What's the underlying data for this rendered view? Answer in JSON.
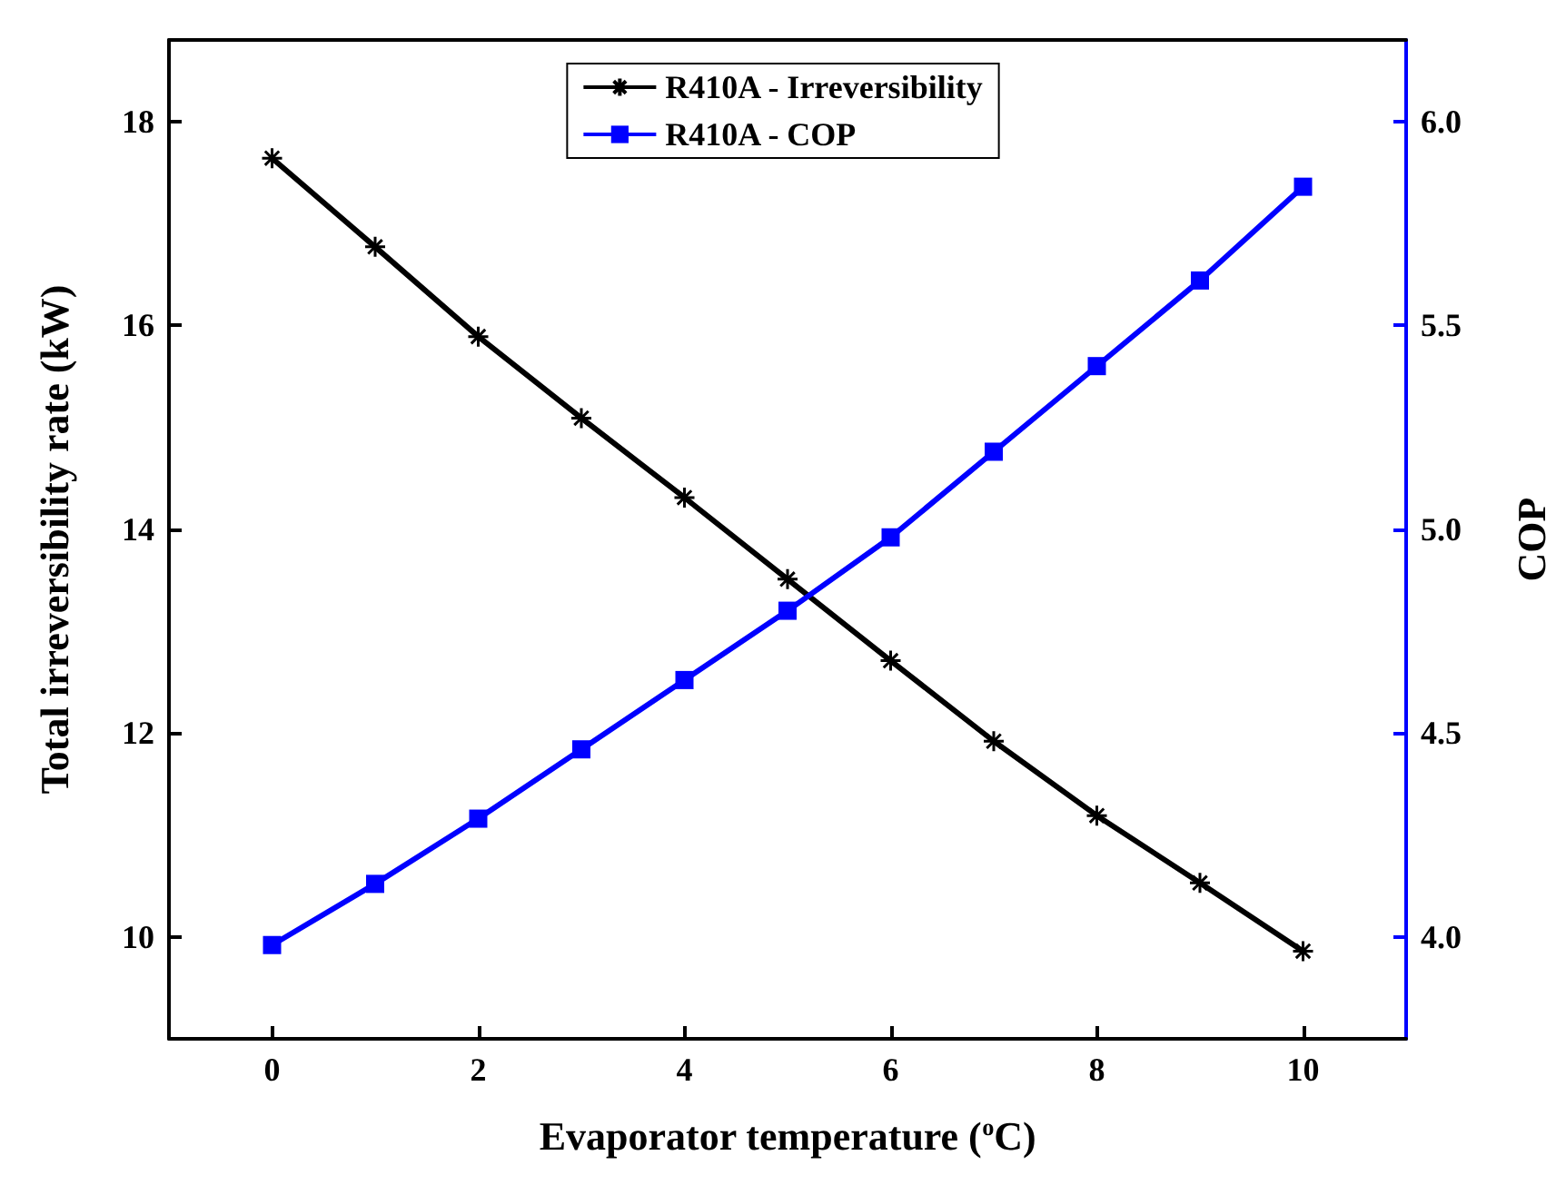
{
  "chart_data": {
    "type": "line",
    "xlabel": "Evaporator temperature ($^{o}$C)",
    "ylabel": "Total irreversibility rate (kW)",
    "y2label": "COP",
    "x": [
      0,
      1,
      2,
      3,
      4,
      5,
      6,
      7,
      8,
      9,
      10
    ],
    "series": [
      {
        "name": "R410A - Irreversibility",
        "color": "#000000",
        "marker": "cross",
        "values": [
          17.64,
          16.77,
          15.89,
          15.09,
          14.31,
          13.51,
          12.71,
          11.92,
          11.19,
          10.53,
          9.86
        ]
      },
      {
        "name": "R410A - COP",
        "color": "#0000ff",
        "marker": "square",
        "axis": "y2",
        "values": [
          3.98,
          4.13,
          4.29,
          4.46,
          4.63,
          4.8,
          4.98,
          5.19,
          5.4,
          5.61,
          5.84
        ]
      }
    ],
    "xlim": [
      -1,
      11
    ],
    "xticks": [
      0,
      2,
      4,
      6,
      8,
      10
    ],
    "ylim": [
      9,
      18.8
    ],
    "yticks": [
      10,
      12,
      14,
      16,
      18
    ],
    "y2lim": [
      3.75,
      6.2
    ],
    "y2ticks": [
      {
        "value": 4,
        "label": "4.0"
      },
      {
        "value": 4.5,
        "label": "4.5"
      },
      {
        "value": 5,
        "label": "5.0"
      },
      {
        "value": 5.5,
        "label": "5.5"
      },
      {
        "value": 6,
        "label": "6.0"
      }
    ],
    "grid": false,
    "legend": "top",
    "line_style": "solid"
  }
}
